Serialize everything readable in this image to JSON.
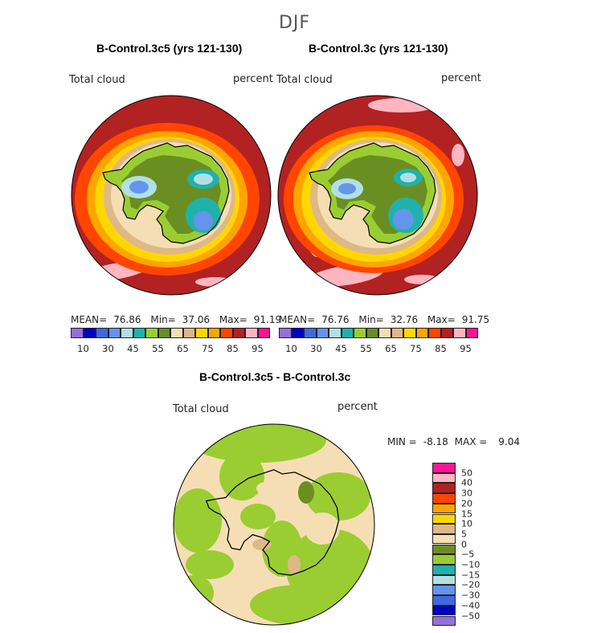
{
  "season": "DJF",
  "panels": [
    {
      "title": "B-Control.3c5 (yrs 121-130)",
      "variable": "Total cloud",
      "units": "percent",
      "mean_label": "MEAN=",
      "mean": "76.86",
      "min_label": "Min=",
      "min": "37.06",
      "max_label": "Max=",
      "max": "91.19"
    },
    {
      "title": "B-Control.3c (yrs 121-130)",
      "variable": "Total cloud",
      "units": "percent",
      "mean_label": "MEAN=",
      "mean": "76.76",
      "min_label": "Min=",
      "min": "32.76",
      "max_label": "Max=",
      "max": "91.75"
    }
  ],
  "colorbar": {
    "colors": [
      "#9370db",
      "#0000cd",
      "#4169e1",
      "#6495ed",
      "#b0e0e6",
      "#20b2aa",
      "#9acd32",
      "#6b8e23",
      "#f5deb3",
      "#deb887",
      "#ffd700",
      "#ffa500",
      "#ff4500",
      "#b22222",
      "#ffb6c1",
      "#ff1493"
    ],
    "ticks": [
      "10",
      "30",
      "45",
      "55",
      "65",
      "75",
      "85",
      "95"
    ]
  },
  "diff": {
    "title": "B-Control.3c5 - B-Control.3c",
    "variable": "Total cloud",
    "units": "percent",
    "min_label": "MIN =",
    "min": "-8.18",
    "max_label": "MAX =",
    "max": "9.04",
    "colors": [
      "#ff1493",
      "#ffb6c1",
      "#b22222",
      "#ff4500",
      "#ffa500",
      "#ffd700",
      "#deb887",
      "#f5deb3",
      "#6b8e23",
      "#9acd32",
      "#20b2aa",
      "#b0e0e6",
      "#6495ed",
      "#4169e1",
      "#0000cd",
      "#9370db"
    ],
    "labels": [
      "50",
      "40",
      "30",
      "20",
      "15",
      "10",
      "5",
      "0",
      "−5",
      "−10",
      "−15",
      "−20",
      "−30",
      "−40",
      "−50"
    ]
  },
  "chart_data": [
    {
      "type": "heatmap",
      "title": "B-Control.3c5 (yrs 121-130)",
      "variable": "Total cloud",
      "units": "percent",
      "levels": [
        10,
        30,
        45,
        55,
        65,
        75,
        85,
        95
      ],
      "mean": 76.86,
      "min": 37.06,
      "max": 91.19
    },
    {
      "type": "heatmap",
      "title": "B-Control.3c (yrs 121-130)",
      "variable": "Total cloud",
      "units": "percent",
      "levels": [
        10,
        30,
        45,
        55,
        65,
        75,
        85,
        95
      ],
      "mean": 76.76,
      "min": 32.76,
      "max": 91.75
    },
    {
      "type": "heatmap",
      "title": "B-Control.3c5 - B-Control.3c",
      "variable": "Total cloud",
      "units": "percent",
      "levels": [
        -50,
        -40,
        -30,
        -20,
        -15,
        -10,
        -5,
        0,
        5,
        10,
        15,
        20,
        30,
        40,
        50
      ],
      "min": -8.18,
      "max": 9.04
    }
  ]
}
